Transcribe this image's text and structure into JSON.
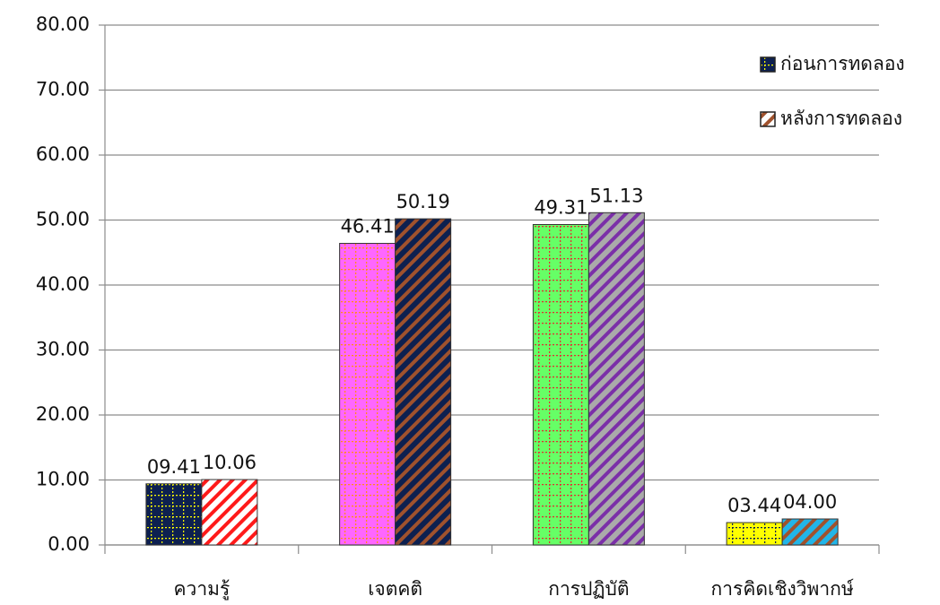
{
  "chart_data": {
    "type": "bar",
    "categories": [
      "ความรู้",
      "เจตคติ",
      "การปฏิบัติ",
      "การคิดเชิงวิพากษ์"
    ],
    "series": [
      {
        "name": "ก่อนการทดลอง",
        "color": "#0d2050",
        "pattern": "grid",
        "colors": [
          "#0d2050",
          "#ff66ff",
          "#66ff66",
          "#ffff00"
        ],
        "pattern_colors": [
          "#ffff00",
          "#ff8c1a",
          "#e03030",
          "#0d2050"
        ],
        "values": [
          9.41,
          46.41,
          49.31,
          3.44
        ],
        "value_labels": [
          "09.41",
          "46.41",
          "49.31",
          "03.44"
        ]
      },
      {
        "name": "หลังการทดลอง",
        "color": "#ffffff",
        "pattern": "stripes",
        "colors": [
          "#ffffff",
          "#0d2050",
          "#aaaaaa",
          "#22b5e8"
        ],
        "pattern_colors": [
          "#ff1a1a",
          "#a0522d",
          "#7b2fa8",
          "#a0522d"
        ],
        "values": [
          10.06,
          50.19,
          51.13,
          4.0
        ],
        "value_labels": [
          "10.06",
          "50.19",
          "51.13",
          "04.00"
        ]
      }
    ],
    "ylim": [
      0,
      80
    ],
    "yticks": [
      {
        "value": 0,
        "label": "0.00"
      },
      {
        "value": 10,
        "label": "10.00"
      },
      {
        "value": 20,
        "label": "20.00"
      },
      {
        "value": 30,
        "label": "30.00"
      },
      {
        "value": 40,
        "label": "40.00"
      },
      {
        "value": 50,
        "label": "50.00"
      },
      {
        "value": 60,
        "label": "60.00"
      },
      {
        "value": 70,
        "label": "70.00"
      },
      {
        "value": 80,
        "label": "80.00"
      }
    ],
    "grid": true,
    "legend": "top-right"
  }
}
